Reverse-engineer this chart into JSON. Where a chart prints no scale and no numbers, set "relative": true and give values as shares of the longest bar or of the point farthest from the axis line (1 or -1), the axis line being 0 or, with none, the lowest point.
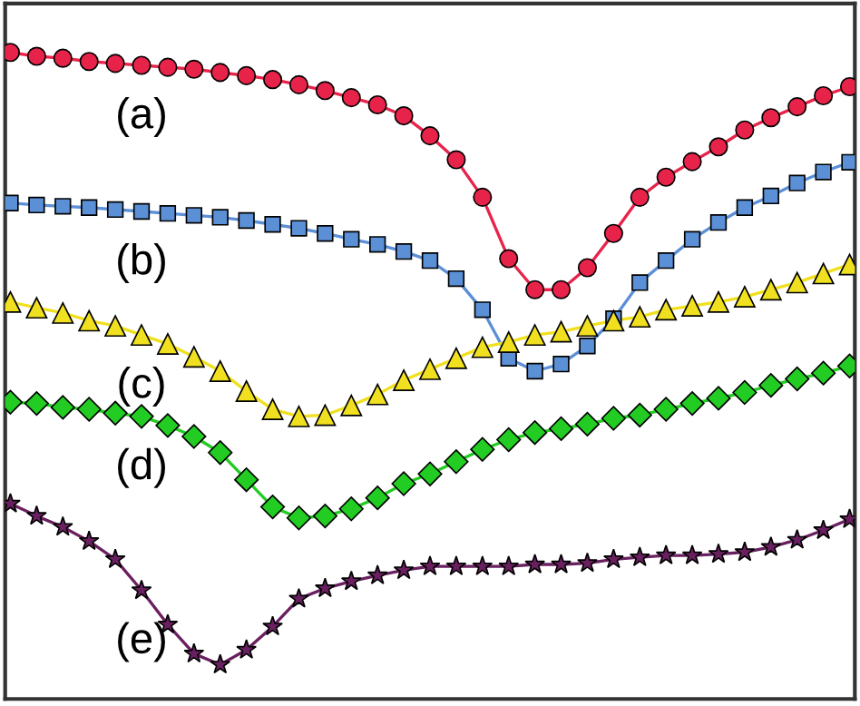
{
  "chart_data": {
    "type": "line",
    "relative": true,
    "legend": false,
    "grid": false,
    "categories": [
      null,
      null,
      null,
      null,
      null,
      null,
      null,
      null,
      null,
      null,
      null,
      null,
      null,
      null,
      null,
      null,
      null,
      null,
      null,
      null,
      null,
      null,
      null,
      null,
      null,
      null,
      null,
      null,
      null,
      null,
      null,
      null,
      null
    ],
    "series": [
      {
        "name": "(a)",
        "color": "#e8234a",
        "marker": "circle",
        "values": [
          1.0,
          0.994,
          0.991,
          0.986,
          0.983,
          0.98,
          0.977,
          0.974,
          0.969,
          0.964,
          0.958,
          0.95,
          0.941,
          0.93,
          0.919,
          0.902,
          0.871,
          0.834,
          0.776,
          0.681,
          0.633,
          0.633,
          0.667,
          0.72,
          0.776,
          0.807,
          0.831,
          0.854,
          0.88,
          0.899,
          0.916,
          0.933,
          0.947
        ]
      },
      {
        "name": "(b)",
        "color": "#5b8fd6",
        "marker": "square",
        "values": [
          0.767,
          0.764,
          0.762,
          0.76,
          0.757,
          0.754,
          0.751,
          0.748,
          0.745,
          0.74,
          0.734,
          0.728,
          0.72,
          0.711,
          0.703,
          0.692,
          0.678,
          0.65,
          0.602,
          0.527,
          0.507,
          0.518,
          0.546,
          0.588,
          0.644,
          0.678,
          0.711,
          0.737,
          0.76,
          0.778,
          0.798,
          0.815,
          0.83
        ]
      },
      {
        "name": "(c)",
        "color": "#f0e020",
        "marker": "triangle",
        "values": [
          0.614,
          0.605,
          0.597,
          0.585,
          0.577,
          0.563,
          0.549,
          0.529,
          0.507,
          0.476,
          0.448,
          0.437,
          0.439,
          0.454,
          0.471,
          0.493,
          0.51,
          0.527,
          0.544,
          0.552,
          0.563,
          0.568,
          0.577,
          0.585,
          0.591,
          0.602,
          0.608,
          0.614,
          0.622,
          0.633,
          0.644,
          0.658,
          0.672
        ]
      },
      {
        "name": "(d)",
        "color": "#22cc22",
        "marker": "diamond",
        "values": [
          0.459,
          0.457,
          0.451,
          0.448,
          0.442,
          0.437,
          0.423,
          0.406,
          0.381,
          0.339,
          0.297,
          0.28,
          0.283,
          0.294,
          0.311,
          0.333,
          0.348,
          0.367,
          0.386,
          0.401,
          0.412,
          0.418,
          0.425,
          0.434,
          0.439,
          0.448,
          0.457,
          0.465,
          0.474,
          0.485,
          0.495,
          0.504,
          0.515
        ]
      },
      {
        "name": "(e)",
        "color": "#6a2060",
        "marker": "star",
        "values": [
          0.302,
          0.283,
          0.266,
          0.244,
          0.216,
          0.168,
          0.115,
          0.07,
          0.053,
          0.076,
          0.112,
          0.155,
          0.171,
          0.182,
          0.191,
          0.199,
          0.205,
          0.205,
          0.205,
          0.205,
          0.208,
          0.208,
          0.21,
          0.216,
          0.219,
          0.222,
          0.222,
          0.224,
          0.227,
          0.235,
          0.246,
          0.261,
          0.278
        ]
      }
    ]
  }
}
